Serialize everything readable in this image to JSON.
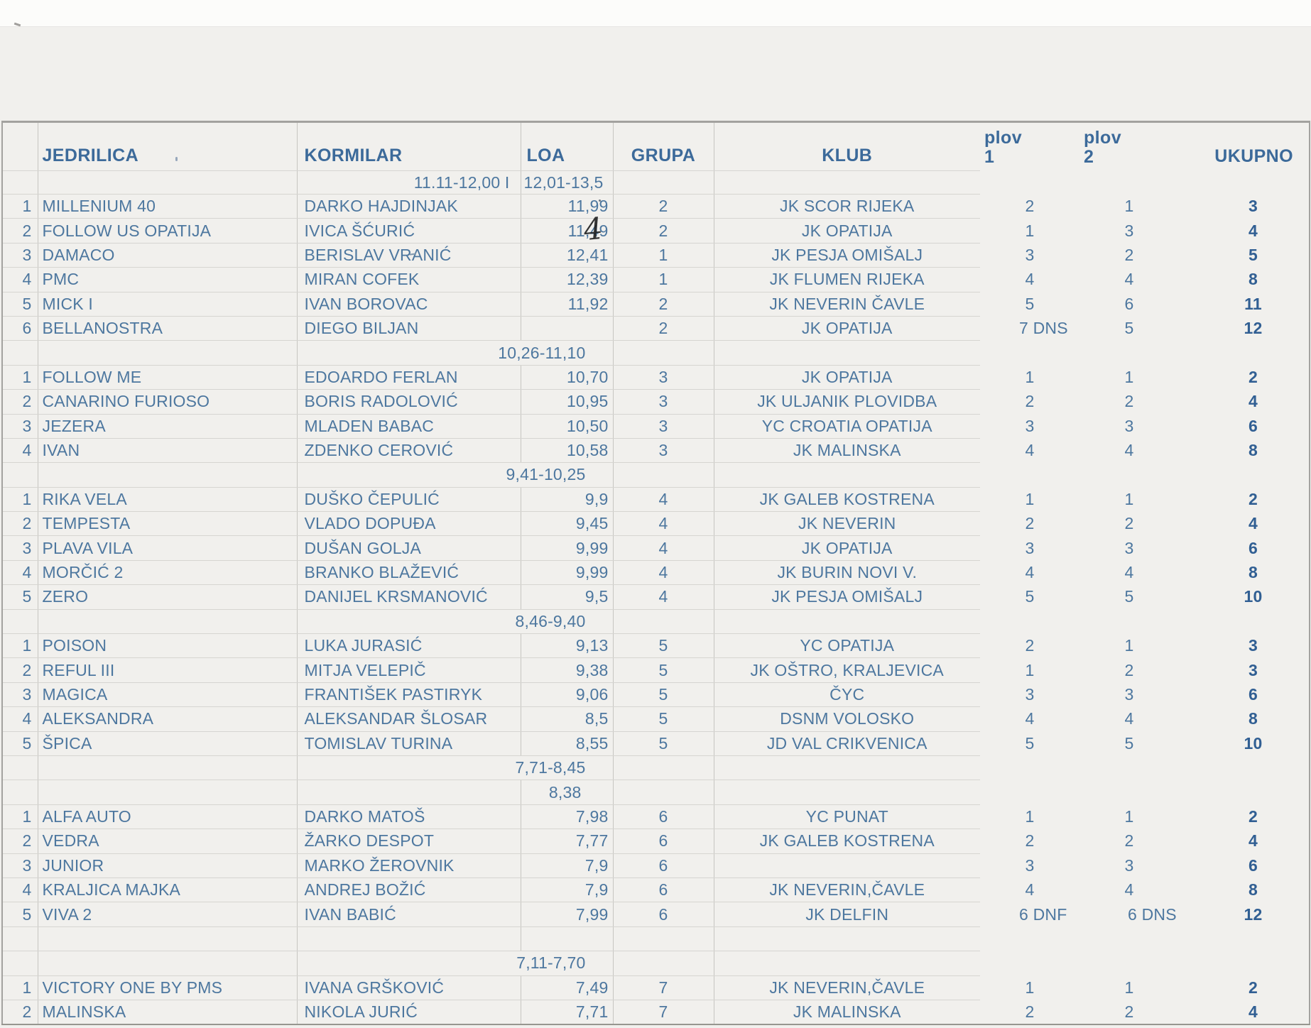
{
  "colors": {
    "paper": "#f1f0ed",
    "ink_blue": "#4d779f",
    "header_blue": "#3c6a9a",
    "total_blue": "#315f93",
    "handwriting": "#1f1f1f",
    "grid_line": "#c6c5c1",
    "outer_border": "#a3a29f"
  },
  "table": {
    "columns": {
      "jedrilica": "JEDRILICA",
      "kormilar": "KORMILAR",
      "loa": "LOA",
      "grupa": "GRUPA",
      "klub": "KLUB",
      "plov": "plov",
      "plov1_num": "1",
      "plov2_num": "2",
      "ukupno": "UKUPNO"
    },
    "subheader": {
      "left": "11.11-12,00 I",
      "right": "12,01-13,5"
    },
    "rows": [
      {
        "type": "data",
        "num": "1",
        "name": "MILLENIUM 40",
        "helm": "DARKO HAJDINJAK",
        "loa": "11,99",
        "grupa": "2",
        "klub": "JK SCOR RIJEKA",
        "p1": "2",
        "p2": "1",
        "uk": "3"
      },
      {
        "type": "data",
        "num": "2",
        "name": "FOLLOW US OPATIJA",
        "helm": "IVICA ŠĆURIĆ",
        "loa": "11,49",
        "hand": "4",
        "grupa": "2",
        "klub": "JK OPATIJA",
        "p1": "1",
        "p2": "3",
        "uk": "4"
      },
      {
        "type": "data",
        "num": "3",
        "name": "DAMACO",
        "helm": "BERISLAV VRANIĆ",
        "loa": "12,41",
        "grupa": "1",
        "klub": "JK PESJA OMIŠALJ",
        "p1": "3",
        "p2": "2",
        "uk": "5"
      },
      {
        "type": "data",
        "num": "4",
        "name": "PMC",
        "helm": "MIRAN COFEK",
        "loa": "12,39",
        "grupa": "1",
        "klub": "JK FLUMEN RIJEKA",
        "p1": "4",
        "p2": "4",
        "uk": "8"
      },
      {
        "type": "data",
        "num": "5",
        "name": "MICK I",
        "helm": "IVAN BOROVAC",
        "loa": "11,92",
        "grupa": "2",
        "klub": "JK NEVERIN ČAVLE",
        "p1": "5",
        "p2": "6",
        "uk": "11"
      },
      {
        "type": "data",
        "num": "6",
        "name": "BELLANOSTRA",
        "helm": "DIEGO BILJAN",
        "loa": "",
        "grupa": "2",
        "klub": "JK OPATIJA",
        "p1": "7 DNS",
        "p2": "5",
        "uk": "12"
      },
      {
        "type": "section",
        "range": "10,26-11,10"
      },
      {
        "type": "data",
        "num": "1",
        "name": "FOLLOW ME",
        "helm": "EDOARDO FERLAN",
        "loa": "10,70",
        "grupa": "3",
        "klub": "JK OPATIJA",
        "p1": "1",
        "p2": "1",
        "uk": "2"
      },
      {
        "type": "data",
        "num": "2",
        "name": "CANARINO FURIOSO",
        "helm": "BORIS RADOLOVIĆ",
        "loa": "10,95",
        "grupa": "3",
        "klub": "JK ULJANIK PLOVIDBA",
        "p1": "2",
        "p2": "2",
        "uk": "4"
      },
      {
        "type": "data",
        "num": "3",
        "name": "JEZERA",
        "helm": "MLADEN BABAC",
        "loa": "10,50",
        "grupa": "3",
        "klub": "YC CROATIA OPATIJA",
        "p1": "3",
        "p2": "3",
        "uk": "6"
      },
      {
        "type": "data",
        "num": "4",
        "name": "IVAN",
        "helm": "ZDENKO CEROVIĆ",
        "loa": "10,58",
        "grupa": "3",
        "klub": "JK MALINSKA",
        "p1": "4",
        "p2": "4",
        "uk": "8"
      },
      {
        "type": "section",
        "range": "9,41-10,25"
      },
      {
        "type": "data",
        "num": "1",
        "name": "RIKA VELA",
        "helm": "DUŠKO ČEPULIĆ",
        "loa": "9,9",
        "grupa": "4",
        "klub": "JK GALEB KOSTRENA",
        "p1": "1",
        "p2": "1",
        "uk": "2"
      },
      {
        "type": "data",
        "num": "2",
        "name": "TEMPESTA",
        "helm": "VLADO DOPUĐA",
        "loa": "9,45",
        "grupa": "4",
        "klub": "JK NEVERIN",
        "p1": "2",
        "p2": "2",
        "uk": "4"
      },
      {
        "type": "data",
        "num": "3",
        "name": "PLAVA VILA",
        "helm": "DUŠAN GOLJA",
        "loa": "9,99",
        "grupa": "4",
        "klub": "JK OPATIJA",
        "p1": "3",
        "p2": "3",
        "uk": "6"
      },
      {
        "type": "data",
        "num": "4",
        "name": "MORČIĆ 2",
        "helm": "BRANKO BLAŽEVIĆ",
        "loa": "9,99",
        "grupa": "4",
        "klub": "JK BURIN NOVI V.",
        "p1": "4",
        "p2": "4",
        "uk": "8"
      },
      {
        "type": "data",
        "num": "5",
        "name": "ZERO",
        "helm": "DANIJEL KRSMANOVIĆ",
        "loa": "9,5",
        "grupa": "4",
        "klub": "JK PESJA OMIŠALJ",
        "p1": "5",
        "p2": "5",
        "uk": "10"
      },
      {
        "type": "section",
        "range": "8,46-9,40"
      },
      {
        "type": "data",
        "num": "1",
        "name": "POISON",
        "helm": "LUKA JURASIĆ",
        "loa": "9,13",
        "grupa": "5",
        "klub": "YC OPATIJA",
        "p1": "2",
        "p2": "1",
        "uk": "3"
      },
      {
        "type": "data",
        "num": "2",
        "name": "REFUL III",
        "helm": "MITJA VELEPIČ",
        "loa": "9,38",
        "grupa": "5",
        "klub": "JK OŠTRO, KRALJEVICA",
        "p1": "1",
        "p2": "2",
        "uk": "3"
      },
      {
        "type": "data",
        "num": "3",
        "name": "MAGICA",
        "helm": "FRANTIŠEK PASTIRYK",
        "loa": "9,06",
        "grupa": "5",
        "klub": "ČYC",
        "p1": "3",
        "p2": "3",
        "uk": "6"
      },
      {
        "type": "data",
        "num": "4",
        "name": "ALEKSANDRA",
        "helm": "ALEKSANDAR ŠLOSAR",
        "loa": "8,5",
        "grupa": "5",
        "klub": "DSNM VOLOSKO",
        "p1": "4",
        "p2": "4",
        "uk": "8"
      },
      {
        "type": "data",
        "num": "5",
        "name": "ŠPICA",
        "helm": "TOMISLAV TURINA",
        "loa": "8,55",
        "grupa": "5",
        "klub": "JD VAL CRIKVENICA",
        "p1": "5",
        "p2": "5",
        "uk": "10"
      },
      {
        "type": "section",
        "range": "7,71-8,45"
      },
      {
        "type": "loa",
        "loa": "8,38"
      },
      {
        "type": "data",
        "num": "1",
        "name": "ALFA AUTO",
        "helm": "DARKO MATOŠ",
        "loa": "7,98",
        "grupa": "6",
        "klub": "YC PUNAT",
        "p1": "1",
        "p2": "1",
        "uk": "2"
      },
      {
        "type": "data",
        "num": "2",
        "name": "VEDRA",
        "helm": "ŽARKO DESPOT",
        "loa": "7,77",
        "grupa": "6",
        "klub": "JK GALEB KOSTRENA",
        "p1": "2",
        "p2": "2",
        "uk": "4"
      },
      {
        "type": "data",
        "num": "3",
        "name": "JUNIOR",
        "helm": "MARKO ŽEROVNIK",
        "loa": "7,9",
        "grupa": "6",
        "klub": "",
        "p1": "3",
        "p2": "3",
        "uk": "6"
      },
      {
        "type": "data",
        "num": "4",
        "name": "KRALJICA MAJKA",
        "helm": "ANDREJ BOŽIĆ",
        "loa": "7,9",
        "grupa": "6",
        "klub": "JK NEVERIN,ČAVLE",
        "p1": "4",
        "p2": "4",
        "uk": "8"
      },
      {
        "type": "data",
        "num": "5",
        "name": "VIVA 2",
        "helm": "IVAN BABIĆ",
        "loa": "7,99",
        "grupa": "6",
        "klub": "JK DELFIN",
        "p1": "6 DNF",
        "p2": "6 DNS",
        "uk": "12"
      },
      {
        "type": "blank"
      },
      {
        "type": "section",
        "range": "7,11-7,70"
      },
      {
        "type": "data",
        "num": "1",
        "name": "VICTORY ONE BY PMS",
        "helm": "IVANA GRŠKOVIĆ",
        "loa": "7,49",
        "grupa": "7",
        "klub": "JK NEVERIN,ČAVLE",
        "p1": "1",
        "p2": "1",
        "uk": "2"
      },
      {
        "type": "data",
        "num": "2",
        "name": "MALINSKA",
        "helm": "NIKOLA JURIĆ",
        "loa": "7,71",
        "grupa": "7",
        "klub": "JK MALINSKA",
        "p1": "2",
        "p2": "2",
        "uk": "4"
      }
    ]
  }
}
